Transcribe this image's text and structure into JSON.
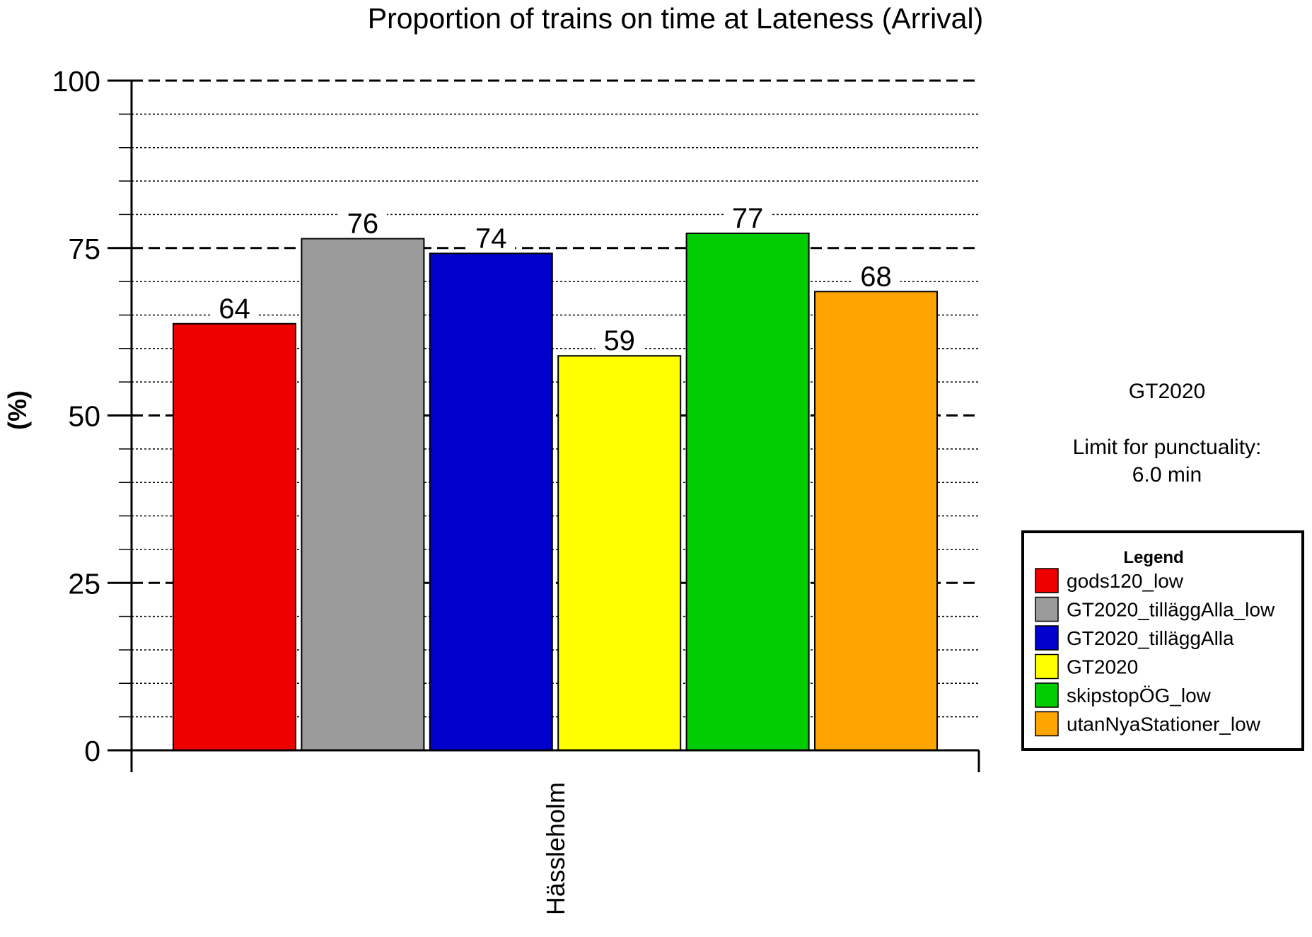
{
  "chart_data": {
    "type": "bar",
    "title": "Proportion of trains on time at Lateness (Arrival)",
    "xlabel": "",
    "ylabel": "(%)",
    "ylim": [
      0,
      100
    ],
    "yticks": [
      0,
      25,
      50,
      75,
      100
    ],
    "minor_grid_step": 5,
    "grid": true,
    "categories": [
      "Hässleholm"
    ],
    "series": [
      {
        "name": "gods120_low",
        "values": [
          63.7
        ],
        "label": "64",
        "color": "#ee0000"
      },
      {
        "name": "GT2020_tilläggAlla_low",
        "values": [
          76.4
        ],
        "label": "76",
        "color": "#9b9b9b"
      },
      {
        "name": "GT2020_tilläggAlla",
        "values": [
          74.2
        ],
        "label": "74",
        "color": "#0000cc"
      },
      {
        "name": "GT2020",
        "values": [
          58.9
        ],
        "label": "59",
        "color": "#ffff00"
      },
      {
        "name": "skipstopÖG_low",
        "values": [
          77.2
        ],
        "label": "77",
        "color": "#00cc00"
      },
      {
        "name": "utanNyaStationer_low",
        "values": [
          68.5
        ],
        "label": "68",
        "color": "#ffa500"
      }
    ],
    "legend": {
      "title": "Legend",
      "position": "right"
    }
  },
  "side_notes": {
    "timetable": "GT2020",
    "limit_label": "Limit for punctuality:",
    "limit_value": "6.0 min"
  }
}
